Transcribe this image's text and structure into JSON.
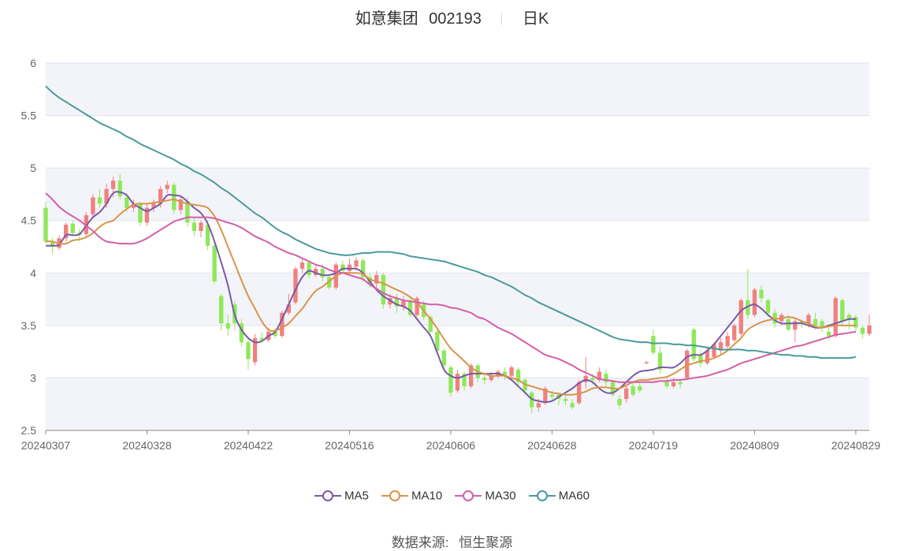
{
  "header": {
    "stock_name": "如意集团",
    "stock_code": "002193",
    "period": "日K"
  },
  "source": {
    "label": "数据来源:",
    "value": "恒生聚源"
  },
  "colors": {
    "up": "#f08080",
    "down": "#8ee85a",
    "MA5": "#7b5aa6",
    "MA10": "#d9944a",
    "MA30": "#d35fa6",
    "MA60": "#4a9a9a",
    "band": "#f3f4f9",
    "grid": "#dfe3ee"
  },
  "chart_data": {
    "type": "candlestick",
    "ylim": [
      2.5,
      6
    ],
    "yticks": [
      "2.5",
      "3",
      "3.5",
      "4",
      "4.5",
      "5",
      "5.5",
      "6"
    ],
    "xtick_labels": [
      "20240307",
      "20240328",
      "20240422",
      "20240516",
      "20240606",
      "20240628",
      "20240719",
      "20240809",
      "20240829"
    ],
    "xtick_indices": [
      0,
      15,
      30,
      45,
      60,
      75,
      90,
      105,
      120
    ],
    "candles": [
      [
        4.62,
        4.3,
        4.68,
        4.28
      ],
      [
        4.3,
        4.25,
        4.33,
        4.18
      ],
      [
        4.24,
        4.33,
        4.36,
        4.22
      ],
      [
        4.33,
        4.46,
        4.48,
        4.3
      ],
      [
        4.47,
        4.38,
        4.5,
        4.35
      ],
      [
        4.38,
        4.36,
        4.42,
        4.3
      ],
      [
        4.37,
        4.55,
        4.58,
        4.35
      ],
      [
        4.56,
        4.72,
        4.75,
        4.52
      ],
      [
        4.72,
        4.66,
        4.8,
        4.62
      ],
      [
        4.66,
        4.8,
        4.85,
        4.62
      ],
      [
        4.8,
        4.88,
        4.92,
        4.72
      ],
      [
        4.88,
        4.73,
        4.94,
        4.7
      ],
      [
        4.72,
        4.62,
        4.76,
        4.58
      ],
      [
        4.62,
        4.66,
        4.7,
        4.58
      ],
      [
        4.66,
        4.48,
        4.68,
        4.45
      ],
      [
        4.48,
        4.62,
        4.66,
        4.45
      ],
      [
        4.62,
        4.66,
        4.7,
        4.58
      ],
      [
        4.66,
        4.8,
        4.83,
        4.62
      ],
      [
        4.8,
        4.84,
        4.88,
        4.76
      ],
      [
        4.84,
        4.6,
        4.86,
        4.56
      ],
      [
        4.6,
        4.7,
        4.74,
        4.56
      ],
      [
        4.68,
        4.48,
        4.72,
        4.44
      ],
      [
        4.48,
        4.4,
        4.52,
        4.35
      ],
      [
        4.4,
        4.48,
        4.5,
        4.34
      ],
      [
        4.46,
        4.26,
        4.5,
        4.22
      ],
      [
        4.26,
        3.92,
        4.28,
        3.9
      ],
      [
        3.78,
        3.52,
        3.8,
        3.45
      ],
      [
        3.52,
        3.47,
        3.6,
        3.4
      ],
      [
        3.7,
        3.52,
        3.74,
        3.45
      ],
      [
        3.52,
        3.34,
        3.56,
        3.3
      ],
      [
        3.34,
        3.18,
        3.38,
        3.08
      ],
      [
        3.15,
        3.38,
        3.42,
        3.12
      ],
      [
        3.38,
        3.36,
        3.44,
        3.34
      ],
      [
        3.36,
        3.44,
        3.48,
        3.34
      ],
      [
        3.44,
        3.4,
        3.48,
        3.38
      ],
      [
        3.4,
        3.62,
        3.64,
        3.38
      ],
      [
        3.62,
        3.7,
        3.8,
        3.6
      ],
      [
        3.72,
        4.04,
        4.06,
        3.7
      ],
      [
        4.04,
        4.1,
        4.14,
        4.0
      ],
      [
        4.1,
        3.98,
        4.12,
        3.95
      ],
      [
        3.98,
        4.04,
        4.08,
        3.96
      ],
      [
        4.04,
        3.96,
        4.08,
        3.92
      ],
      [
        3.96,
        3.86,
        3.98,
        3.84
      ],
      [
        3.86,
        4.08,
        4.1,
        3.84
      ],
      [
        4.08,
        4.02,
        4.12,
        4.0
      ],
      [
        4.02,
        4.08,
        4.14,
        3.98
      ],
      [
        4.06,
        4.12,
        4.15,
        4.02
      ],
      [
        4.12,
        3.96,
        4.14,
        3.92
      ],
      [
        3.96,
        3.9,
        4.0,
        3.86
      ],
      [
        3.9,
        3.98,
        4.02,
        3.86
      ],
      [
        3.98,
        3.7,
        4.0,
        3.66
      ],
      [
        3.7,
        3.76,
        3.8,
        3.66
      ],
      [
        3.76,
        3.68,
        3.8,
        3.62
      ],
      [
        3.68,
        3.74,
        3.78,
        3.64
      ],
      [
        3.74,
        3.6,
        3.78,
        3.58
      ],
      [
        3.6,
        3.76,
        3.78,
        3.58
      ],
      [
        3.7,
        3.58,
        3.74,
        3.55
      ],
      [
        3.58,
        3.44,
        3.6,
        3.4
      ],
      [
        3.44,
        3.26,
        3.46,
        3.22
      ],
      [
        3.26,
        3.12,
        3.28,
        3.06
      ],
      [
        3.1,
        2.86,
        3.12,
        2.82
      ],
      [
        2.88,
        3.04,
        3.08,
        2.86
      ],
      [
        3.04,
        2.92,
        3.06,
        2.88
      ],
      [
        2.92,
        3.12,
        3.14,
        2.9
      ],
      [
        3.12,
        3.0,
        3.14,
        2.96
      ],
      [
        3.0,
        2.98,
        3.04,
        2.94
      ],
      [
        2.98,
        3.02,
        3.06,
        2.96
      ],
      [
        3.02,
        3.06,
        3.08,
        3.0
      ],
      [
        3.06,
        3.02,
        3.1,
        2.98
      ],
      [
        3.02,
        3.1,
        3.12,
        2.98
      ],
      [
        3.08,
        2.96,
        3.1,
        2.92
      ],
      [
        2.98,
        2.88,
        3.0,
        2.84
      ],
      [
        2.86,
        2.72,
        2.88,
        2.66
      ],
      [
        2.72,
        2.76,
        2.8,
        2.68
      ],
      [
        2.76,
        2.9,
        2.92,
        2.74
      ],
      [
        2.84,
        2.82,
        2.88,
        2.78
      ],
      [
        2.84,
        2.8,
        2.86,
        2.74
      ],
      [
        2.8,
        2.78,
        2.84,
        2.74
      ],
      [
        2.76,
        2.72,
        2.8,
        2.7
      ],
      [
        2.76,
        2.96,
        2.98,
        2.74
      ],
      [
        2.96,
        3.02,
        3.2,
        2.9
      ],
      [
        3.0,
        2.98,
        3.04,
        2.94
      ],
      [
        2.98,
        3.06,
        3.1,
        2.96
      ],
      [
        3.04,
        2.96,
        3.08,
        2.92
      ],
      [
        2.96,
        2.84,
        2.98,
        2.82
      ],
      [
        2.8,
        2.74,
        2.84,
        2.7
      ],
      [
        2.8,
        2.9,
        2.94,
        2.76
      ],
      [
        2.92,
        2.84,
        2.96,
        2.82
      ],
      [
        2.92,
        2.88,
        2.96,
        2.86
      ],
      [
        3.14,
        3.15,
        3.16,
        3.13
      ],
      [
        3.4,
        3.24,
        3.46,
        3.22
      ],
      [
        3.24,
        3.08,
        3.3,
        3.04
      ],
      [
        2.96,
        2.92,
        3.0,
        2.9
      ],
      [
        2.92,
        2.96,
        3.0,
        2.9
      ],
      [
        2.96,
        2.94,
        2.98,
        2.9
      ],
      [
        3.0,
        3.26,
        3.28,
        2.98
      ],
      [
        3.46,
        3.18,
        3.48,
        3.16
      ],
      [
        3.22,
        3.14,
        3.26,
        3.1
      ],
      [
        3.14,
        3.26,
        3.3,
        3.12
      ],
      [
        3.2,
        3.32,
        3.34,
        3.18
      ],
      [
        3.26,
        3.34,
        3.38,
        3.22
      ],
      [
        3.3,
        3.4,
        3.44,
        3.26
      ],
      [
        3.36,
        3.5,
        3.52,
        3.34
      ],
      [
        3.42,
        3.74,
        3.76,
        3.4
      ],
      [
        3.74,
        3.6,
        4.04,
        3.56
      ],
      [
        3.6,
        3.84,
        3.86,
        3.58
      ],
      [
        3.84,
        3.76,
        3.88,
        3.72
      ],
      [
        3.74,
        3.62,
        3.76,
        3.58
      ],
      [
        3.62,
        3.52,
        3.66,
        3.48
      ],
      [
        3.54,
        3.6,
        3.62,
        3.5
      ],
      [
        3.56,
        3.46,
        3.6,
        3.44
      ],
      [
        3.46,
        3.54,
        3.56,
        3.34
      ],
      [
        3.54,
        3.52,
        3.56,
        3.48
      ],
      [
        3.52,
        3.6,
        3.62,
        3.48
      ],
      [
        3.56,
        3.5,
        3.62,
        3.46
      ],
      [
        3.54,
        3.48,
        3.56,
        3.44
      ],
      [
        3.44,
        3.4,
        3.48,
        3.36
      ],
      [
        3.4,
        3.76,
        3.78,
        3.38
      ],
      [
        3.74,
        3.54,
        3.76,
        3.5
      ],
      [
        3.6,
        3.56,
        3.62,
        3.46
      ],
      [
        3.58,
        3.48,
        3.6,
        3.44
      ],
      [
        3.48,
        3.42,
        3.5,
        3.38
      ],
      [
        3.42,
        3.5,
        3.6,
        3.4
      ]
    ],
    "series": [
      {
        "name": "MA5",
        "values": [
          4.26,
          4.26,
          4.27,
          4.36,
          4.36,
          4.37,
          4.45,
          4.53,
          4.58,
          4.66,
          4.76,
          4.77,
          4.74,
          4.66,
          4.62,
          4.59,
          4.62,
          4.66,
          4.74,
          4.74,
          4.73,
          4.68,
          4.62,
          4.57,
          4.47,
          4.3,
          4.1,
          3.88,
          3.6,
          3.46,
          3.38,
          3.34,
          3.35,
          3.4,
          3.44,
          3.56,
          3.7,
          3.84,
          3.96,
          4.02,
          4.0,
          3.98,
          3.98,
          4.0,
          4.04,
          4.04,
          4.04,
          4.0,
          3.92,
          3.84,
          3.78,
          3.74,
          3.7,
          3.68,
          3.64,
          3.56,
          3.48,
          3.4,
          3.24,
          3.08,
          3.02,
          3.0,
          3.02,
          3.04,
          3.04,
          3.04,
          3.04,
          3.04,
          3.02,
          2.98,
          2.92,
          2.86,
          2.8,
          2.78,
          2.77,
          2.78,
          2.82,
          2.86,
          2.9,
          2.95,
          2.98,
          2.96,
          2.9,
          2.86,
          2.86,
          2.9,
          2.96,
          3.02,
          3.06,
          3.07,
          3.08,
          3.1,
          3.1,
          3.1,
          3.14,
          3.2,
          3.22,
          3.22,
          3.26,
          3.32,
          3.4,
          3.48,
          3.56,
          3.64,
          3.68,
          3.7,
          3.66,
          3.6,
          3.55,
          3.52,
          3.52,
          3.52,
          3.52,
          3.5,
          3.48,
          3.48,
          3.5,
          3.52,
          3.54,
          3.56,
          3.56
        ]
      },
      {
        "name": "MA10",
        "values": [
          4.3,
          4.3,
          4.28,
          4.28,
          4.31,
          4.32,
          4.34,
          4.38,
          4.44,
          4.48,
          4.5,
          4.56,
          4.61,
          4.65,
          4.66,
          4.66,
          4.67,
          4.68,
          4.69,
          4.7,
          4.68,
          4.66,
          4.65,
          4.64,
          4.62,
          4.54,
          4.41,
          4.25,
          4.09,
          3.93,
          3.78,
          3.66,
          3.54,
          3.46,
          3.45,
          3.48,
          3.52,
          3.59,
          3.66,
          3.75,
          3.83,
          3.87,
          3.92,
          3.97,
          4.0,
          4.0,
          4.0,
          3.99,
          3.94,
          3.92,
          3.9,
          3.87,
          3.84,
          3.81,
          3.77,
          3.72,
          3.64,
          3.56,
          3.47,
          3.37,
          3.28,
          3.22,
          3.16,
          3.1,
          3.06,
          3.04,
          3.02,
          3.02,
          3.02,
          3.0,
          2.98,
          2.94,
          2.92,
          2.9,
          2.88,
          2.86,
          2.85,
          2.84,
          2.84,
          2.85,
          2.87,
          2.9,
          2.91,
          2.91,
          2.9,
          2.9,
          2.93,
          2.96,
          2.98,
          2.98,
          2.99,
          3.0,
          3.01,
          3.04,
          3.08,
          3.12,
          3.14,
          3.16,
          3.17,
          3.19,
          3.22,
          3.26,
          3.32,
          3.38,
          3.46,
          3.5,
          3.53,
          3.55,
          3.56,
          3.57,
          3.58,
          3.57,
          3.54,
          3.52,
          3.49,
          3.48,
          3.49,
          3.5,
          3.5,
          3.5,
          3.5
        ]
      },
      {
        "name": "MA30",
        "values": [
          4.76,
          4.7,
          4.63,
          4.58,
          4.54,
          4.5,
          4.45,
          4.4,
          4.34,
          4.3,
          4.29,
          4.28,
          4.28,
          4.28,
          4.3,
          4.33,
          4.37,
          4.41,
          4.45,
          4.49,
          4.51,
          4.53,
          4.53,
          4.53,
          4.53,
          4.52,
          4.5,
          4.48,
          4.46,
          4.43,
          4.39,
          4.35,
          4.32,
          4.29,
          4.25,
          4.22,
          4.19,
          4.17,
          4.14,
          4.11,
          4.08,
          4.06,
          4.03,
          4.01,
          4.0,
          3.98,
          3.96,
          3.94,
          3.89,
          3.85,
          3.81,
          3.78,
          3.76,
          3.74,
          3.73,
          3.72,
          3.71,
          3.7,
          3.7,
          3.69,
          3.67,
          3.66,
          3.64,
          3.62,
          3.58,
          3.56,
          3.52,
          3.48,
          3.45,
          3.42,
          3.38,
          3.34,
          3.3,
          3.26,
          3.22,
          3.2,
          3.18,
          3.15,
          3.12,
          3.08,
          3.05,
          3.02,
          2.99,
          2.98,
          2.97,
          2.96,
          2.96,
          2.96,
          2.96,
          2.96,
          2.96,
          2.97,
          2.97,
          2.98,
          2.98,
          2.99,
          3.0,
          3.01,
          3.02,
          3.04,
          3.06,
          3.08,
          3.11,
          3.14,
          3.16,
          3.18,
          3.2,
          3.22,
          3.24,
          3.26,
          3.28,
          3.3,
          3.31,
          3.33,
          3.35,
          3.37,
          3.39,
          3.41,
          3.42,
          3.43,
          3.44
        ]
      },
      {
        "name": "MA60",
        "values": [
          5.78,
          5.72,
          5.67,
          5.63,
          5.59,
          5.55,
          5.51,
          5.47,
          5.43,
          5.4,
          5.37,
          5.34,
          5.3,
          5.27,
          5.23,
          5.2,
          5.17,
          5.14,
          5.11,
          5.08,
          5.04,
          5.01,
          4.97,
          4.94,
          4.9,
          4.86,
          4.81,
          4.77,
          4.72,
          4.67,
          4.62,
          4.57,
          4.53,
          4.48,
          4.43,
          4.39,
          4.36,
          4.32,
          4.29,
          4.26,
          4.23,
          4.21,
          4.19,
          4.18,
          4.17,
          4.17,
          4.18,
          4.19,
          4.19,
          4.2,
          4.2,
          4.2,
          4.19,
          4.18,
          4.16,
          4.15,
          4.14,
          4.13,
          4.12,
          4.11,
          4.09,
          4.07,
          4.05,
          4.03,
          4.01,
          3.98,
          3.96,
          3.93,
          3.9,
          3.87,
          3.83,
          3.79,
          3.76,
          3.72,
          3.69,
          3.66,
          3.63,
          3.6,
          3.57,
          3.54,
          3.51,
          3.48,
          3.45,
          3.42,
          3.39,
          3.37,
          3.36,
          3.35,
          3.34,
          3.34,
          3.33,
          3.33,
          3.33,
          3.32,
          3.32,
          3.31,
          3.31,
          3.3,
          3.29,
          3.28,
          3.27,
          3.27,
          3.27,
          3.27,
          3.26,
          3.26,
          3.25,
          3.24,
          3.23,
          3.22,
          3.22,
          3.21,
          3.21,
          3.2,
          3.2,
          3.19,
          3.19,
          3.19,
          3.19,
          3.19,
          3.2
        ]
      }
    ]
  }
}
